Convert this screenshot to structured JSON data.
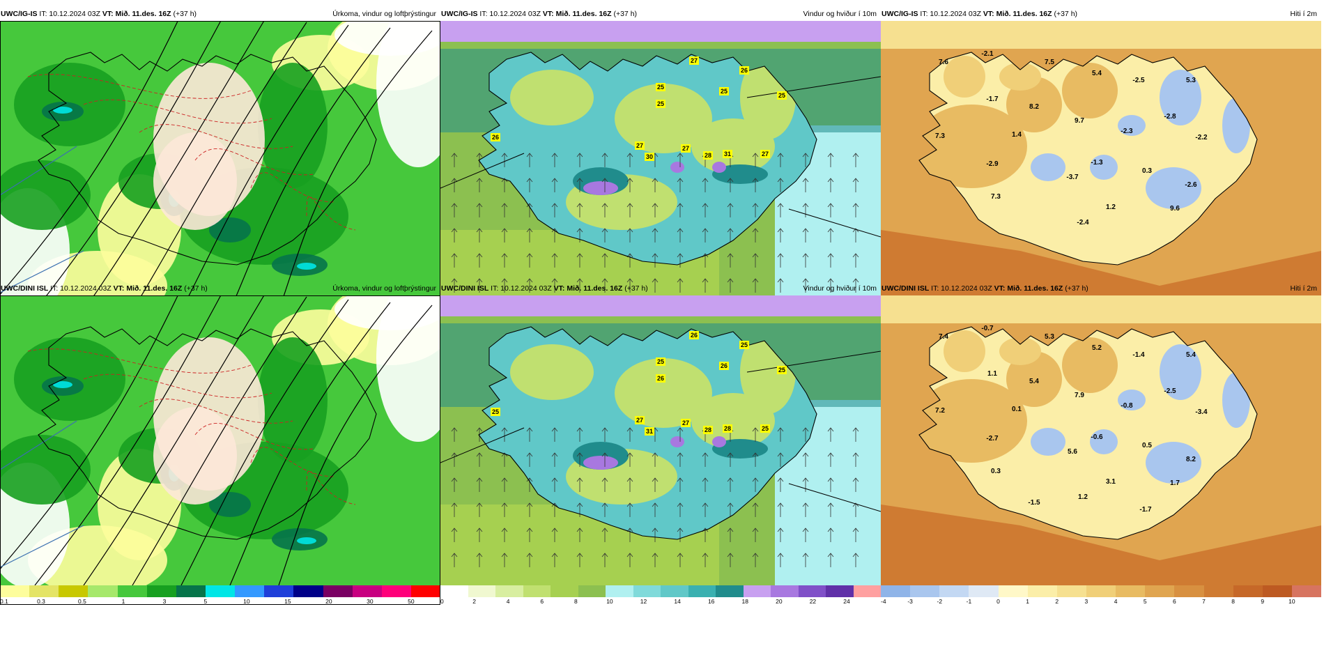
{
  "panels": [
    {
      "model": "UWC/IG-IS",
      "it": "IT: 10.12.2024 03Z",
      "vt": "VT: Mið. 11.des. 16Z",
      "lead": "(+37 h)",
      "title": "Úrkoma, vindur og loftþrýstingur",
      "field": "precip",
      "legend_colors": [
        "#fdfd9c",
        "#e4e466",
        "#c8c800",
        "#a6e86b",
        "#46c83c",
        "#17a020",
        "#06744a",
        "#00e6e6",
        "#3399ff",
        "#1f3fd9",
        "#000088",
        "#7a0063",
        "#c80080",
        "#ff007a",
        "#ff0000"
      ],
      "legend_ticks": [
        "0.1",
        "0.3",
        "0.5",
        "1",
        "3",
        "5",
        "10",
        "15",
        "20",
        "30",
        "50"
      ]
    },
    {
      "model": "UWC/IG-IS",
      "it": "IT: 10.12.2024 03Z",
      "vt": "VT: Mið. 11.des. 16Z",
      "lead": "(+37 h)",
      "title": "Vindur og hviður í 10m",
      "field": "wind",
      "legend_colors": [
        "#ffffff",
        "#f0f8d0",
        "#d8eea0",
        "#c0e070",
        "#a6d050",
        "#8cc050",
        "#b0f0f0",
        "#80dada",
        "#60c8c8",
        "#3ab0b0",
        "#208c8c",
        "#c8a0f0",
        "#a878e0",
        "#8050c8",
        "#6030a8",
        "#ffa0a0"
      ],
      "legend_ticks": [
        "0",
        "2",
        "4",
        "6",
        "8",
        "10",
        "12",
        "14",
        "16",
        "18",
        "20",
        "22",
        "24"
      ],
      "gust_labels": [
        "26",
        "27",
        "25",
        "25",
        "26",
        "25",
        "30",
        "27",
        "27",
        "28",
        "31",
        "27",
        "25"
      ]
    },
    {
      "model": "UWC/IG-IS",
      "it": "IT: 10.12.2024 03Z",
      "vt": "VT: Mið. 11.des. 16Z",
      "lead": "(+37 h)",
      "title": "Hiti í 2m",
      "field": "temp",
      "legend_colors": [
        "#8fb4e8",
        "#a9c6ee",
        "#c3d8f3",
        "#dfe9f5",
        "#fff8c8",
        "#fbeea8",
        "#f6e090",
        "#f0cf78",
        "#e8bb62",
        "#e0a550",
        "#d89040",
        "#cf7b32",
        "#c66828",
        "#bd5a22",
        "#d77460"
      ],
      "legend_ticks": [
        "-4",
        "-3",
        "-2",
        "-1",
        "0",
        "1",
        "2",
        "3",
        "4",
        "5",
        "6",
        "7",
        "8",
        "9",
        "10"
      ],
      "temp_labels": [
        "7.6",
        "-2.1",
        "7.5",
        "5.4",
        "-2.5",
        "5.3",
        "-1.7",
        "8.2",
        "9.7",
        "-2.8",
        "7.3",
        "1.4",
        "-2.3",
        "0.3",
        "-2.6",
        "-2.9",
        "-1.3",
        "-3.7",
        "-2.2",
        "7.3",
        "1.2",
        "9.6",
        "-2.4"
      ]
    },
    {
      "model": "UWC/DINI ISL",
      "it": "IT: 10.12.2024 03Z",
      "vt": "VT: Mið. 11.des. 16Z",
      "lead": "(+37 h)",
      "title": "Úrkoma, vindur og loftþrýstingur",
      "field": "precip",
      "legend_colors": [
        "#fdfd9c",
        "#e4e466",
        "#c8c800",
        "#a6e86b",
        "#46c83c",
        "#17a020",
        "#06744a",
        "#00e6e6",
        "#3399ff",
        "#1f3fd9",
        "#000088",
        "#7a0063",
        "#c80080",
        "#ff007a",
        "#ff0000"
      ],
      "legend_ticks": [
        "0.1",
        "0.3",
        "0.5",
        "1",
        "3",
        "5",
        "10",
        "15",
        "20",
        "30",
        "50"
      ]
    },
    {
      "model": "UWC/DINI ISL",
      "it": "IT: 10.12.2024 03Z",
      "vt": "VT: Mið. 11.des. 16Z",
      "lead": "(+37 h)",
      "title": "Vindur og hviður í 10m",
      "field": "wind",
      "legend_colors": [
        "#ffffff",
        "#f0f8d0",
        "#d8eea0",
        "#c0e070",
        "#a6d050",
        "#8cc050",
        "#b0f0f0",
        "#80dada",
        "#60c8c8",
        "#3ab0b0",
        "#208c8c",
        "#c8a0f0",
        "#a878e0",
        "#8050c8",
        "#6030a8",
        "#ffa0a0"
      ],
      "legend_ticks": [
        "0",
        "2",
        "4",
        "6",
        "8",
        "10",
        "12",
        "14",
        "16",
        "18",
        "20",
        "22",
        "24"
      ],
      "gust_labels": [
        "25",
        "26",
        "25",
        "26",
        "25",
        "26",
        "31",
        "27",
        "27",
        "28",
        "28",
        "25",
        "25"
      ]
    },
    {
      "model": "UWC/DINI ISL",
      "it": "IT: 10.12.2024 03Z",
      "vt": "VT: Mið. 11.des. 16Z",
      "lead": "(+37 h)",
      "title": "Hiti í 2m",
      "field": "temp",
      "legend_colors": [
        "#8fb4e8",
        "#a9c6ee",
        "#c3d8f3",
        "#dfe9f5",
        "#fff8c8",
        "#fbeea8",
        "#f6e090",
        "#f0cf78",
        "#e8bb62",
        "#e0a550",
        "#d89040",
        "#cf7b32",
        "#c66828",
        "#bd5a22",
        "#d77460"
      ],
      "legend_ticks": [
        "-4",
        "-3",
        "-2",
        "-1",
        "0",
        "1",
        "2",
        "3",
        "4",
        "5",
        "6",
        "7",
        "8",
        "9",
        "10"
      ],
      "temp_labels": [
        "7.4",
        "-0.7",
        "5.3",
        "5.2",
        "-1.4",
        "5.4",
        "1.1",
        "5.4",
        "7.9",
        "-2.5",
        "7.2",
        "0.1",
        "-0.8",
        "0.5",
        "8.2",
        "-2.7",
        "-0.6",
        "5.6",
        "-3.4",
        "0.3",
        "3.1",
        "1.7",
        "1.2",
        "-1.5",
        "-1.7"
      ]
    }
  ]
}
